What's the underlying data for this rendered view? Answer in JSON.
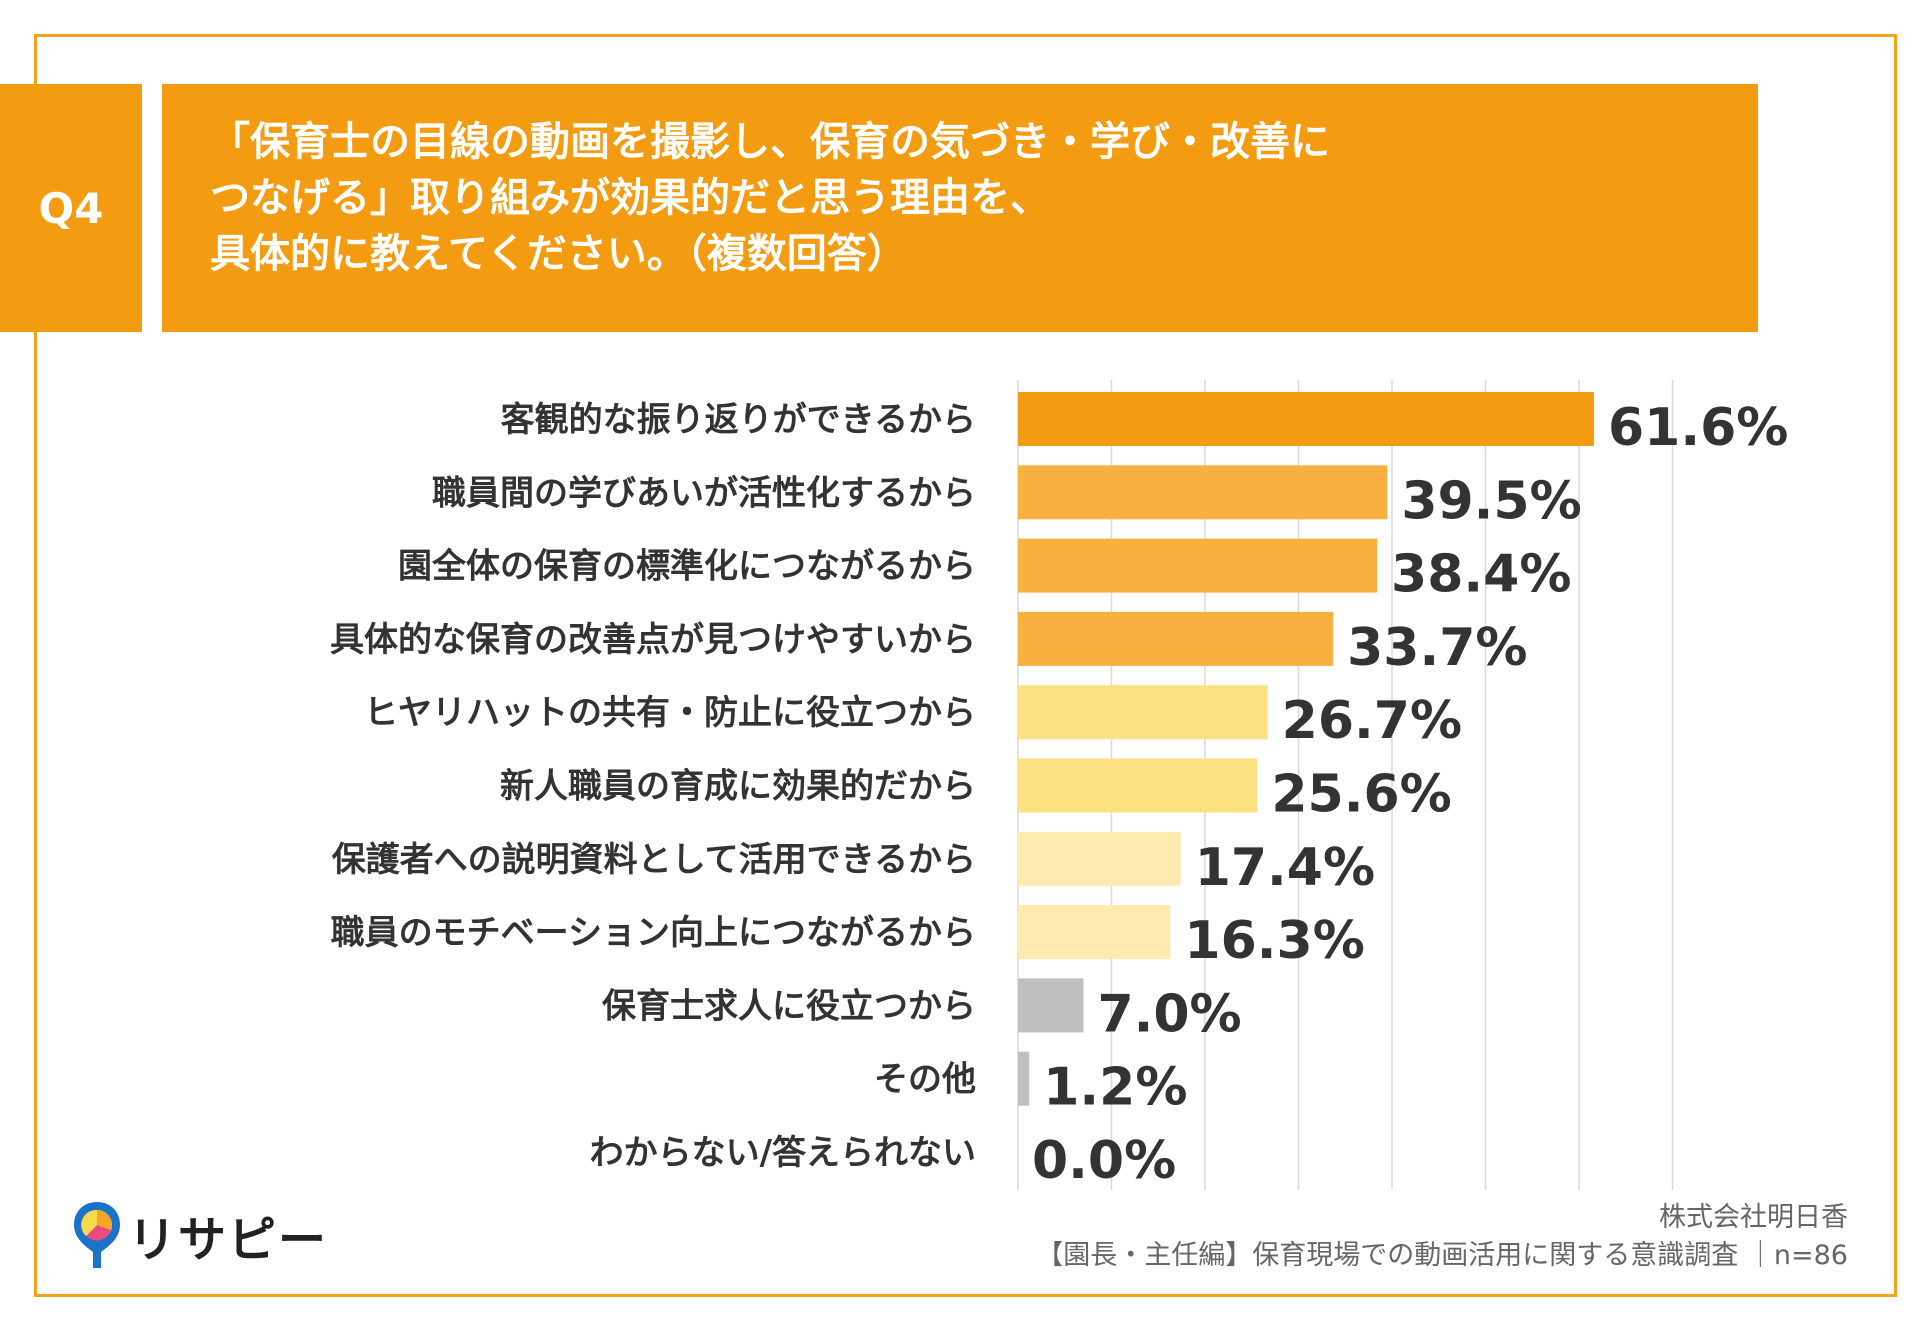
{
  "question": {
    "badge": "Q4",
    "lines": [
      "「保育士の目線の動画を撮影し、保育の気づき・学び・改善に",
      "つなげる」取り組みが効果的だと思う理由を、",
      "具体的に教えてください。（複数回答）"
    ]
  },
  "chart_data": {
    "type": "bar",
    "orientation": "horizontal",
    "categories": [
      "客観的な振り返りができるから",
      "職員間の学びあいが活性化するから",
      "園全体の保育の標準化につながるから",
      "具体的な保育の改善点が見つけやすいから",
      "ヒヤリハットの共有・防止に役立つから",
      "新人職員の育成に効果的だから",
      "保護者への説明資料として活用できるから",
      "職員のモチベーション向上につながるから",
      "保育士求人に役立つから",
      "その他",
      "わからない/答えられない"
    ],
    "values": [
      61.6,
      39.5,
      38.4,
      33.7,
      26.7,
      25.6,
      17.4,
      16.3,
      7.0,
      1.2,
      0.0
    ],
    "value_labels": [
      "61.6%",
      "39.5%",
      "38.4%",
      "33.7%",
      "26.7%",
      "25.6%",
      "17.4%",
      "16.3%",
      "7.0%",
      "1.2%",
      "0.0%"
    ],
    "colors": [
      "#f39c12",
      "#f8b040",
      "#f8b040",
      "#f8b040",
      "#fde080",
      "#fde080",
      "#feeab0",
      "#feeab0",
      "#bfbfbf",
      "#bfbfbf",
      "#bfbfbf"
    ],
    "xlim": [
      0,
      70
    ],
    "grid": true
  },
  "footer": {
    "logo_text": "リサピー",
    "company": "株式会社明日香",
    "survey": "【園長・主任編】保育現場での動画活用に関する意識調査 ｜n=86"
  },
  "colors": {
    "accent": "#f39c12",
    "frame": "#f4a31c"
  }
}
